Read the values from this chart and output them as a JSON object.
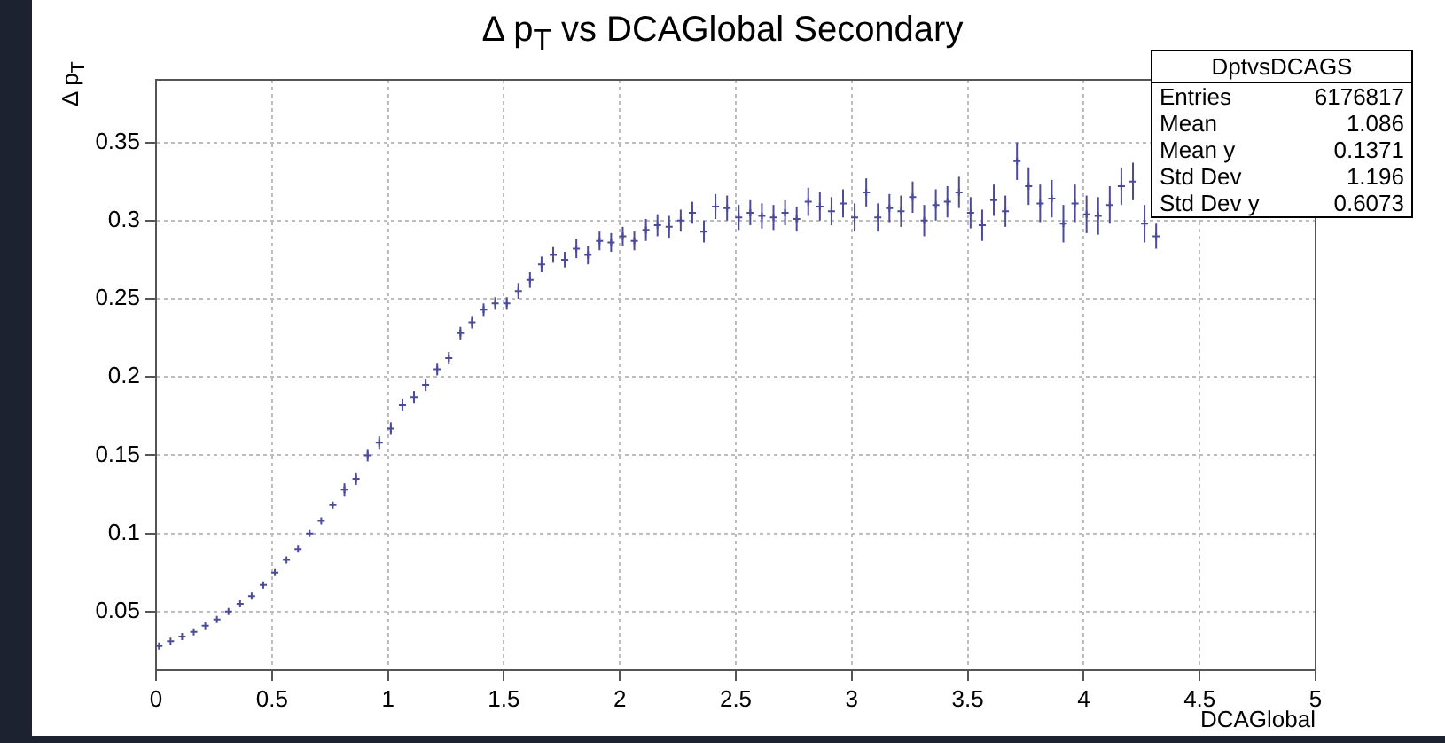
{
  "chart_data": {
    "type": "scatter",
    "title": "Δ p$_{T}$ vs DCAGlobal Secondary",
    "xlabel": "DCAGlobal",
    "ylabel": "Δ p$_{T}$",
    "annotations": [
      "DptvsDCAGS",
      "Entries",
      "6176817",
      "Mean",
      "1.086",
      "Mean y",
      "0.1371",
      "Std Dev",
      "1.196",
      "Std Dev y",
      "0.6073"
    ],
    "xlim": [
      0,
      5
    ],
    "xticks": [
      0,
      0.5,
      1,
      1.5,
      2,
      2.5,
      3,
      3.5,
      4,
      4.5,
      5
    ],
    "ylim": [
      0.0125,
      0.39
    ],
    "yticks": [
      0.05,
      0.1,
      0.15,
      0.2,
      0.25,
      0.3,
      0.35
    ],
    "grid": true,
    "legend": false,
    "marker": "cross",
    "series": [
      {
        "color": "#4b4b9a",
        "x": [
          0.0125,
          0.0625,
          0.1125,
          0.1625,
          0.2125,
          0.2625,
          0.3125,
          0.3625,
          0.4125,
          0.4625,
          0.5125,
          0.5625,
          0.6125,
          0.6625,
          0.7125,
          0.7625,
          0.8125,
          0.8625,
          0.9125,
          0.9625,
          1.0125,
          1.0625,
          1.1125,
          1.1625,
          1.2125,
          1.2625,
          1.3125,
          1.3625,
          1.4125,
          1.4625,
          1.5125,
          1.5625,
          1.6125,
          1.6625,
          1.7125,
          1.7625,
          1.8125,
          1.8625,
          1.9125,
          1.9625,
          2.0125,
          2.0625,
          2.1125,
          2.1625,
          2.2125,
          2.2625,
          2.3125,
          2.3625,
          2.4125,
          2.4625,
          2.5125,
          2.5625,
          2.6125,
          2.6625,
          2.7125,
          2.7625,
          2.8125,
          2.8625,
          2.9125,
          2.9625,
          3.0125,
          3.0625,
          3.1125,
          3.1625,
          3.2125,
          3.2625,
          3.3125,
          3.3625,
          3.4125,
          3.4625,
          3.5125,
          3.5625,
          3.6125,
          3.6625,
          3.7125,
          3.7625,
          3.8125,
          3.8625,
          3.9125,
          3.9625,
          4.0125,
          4.0625,
          4.1125,
          4.1625,
          4.2125,
          4.2625,
          4.3125
        ],
        "values": [
          0.028,
          0.031,
          0.034,
          0.037,
          0.041,
          0.045,
          0.05,
          0.055,
          0.06,
          0.067,
          0.075,
          0.083,
          0.09,
          0.1,
          0.108,
          0.118,
          0.128,
          0.135,
          0.15,
          0.158,
          0.167,
          0.182,
          0.187,
          0.195,
          0.205,
          0.212,
          0.228,
          0.235,
          0.243,
          0.247,
          0.247,
          0.255,
          0.262,
          0.272,
          0.278,
          0.275,
          0.282,
          0.278,
          0.287,
          0.286,
          0.29,
          0.287,
          0.294,
          0.297,
          0.296,
          0.3,
          0.305,
          0.293,
          0.309,
          0.308,
          0.302,
          0.305,
          0.303,
          0.302,
          0.305,
          0.301,
          0.312,
          0.309,
          0.306,
          0.311,
          0.302,
          0.318,
          0.302,
          0.308,
          0.306,
          0.315,
          0.3,
          0.31,
          0.312,
          0.318,
          0.305,
          0.297,
          0.313,
          0.306,
          0.338,
          0.322,
          0.311,
          0.314,
          0.298,
          0.311,
          0.304,
          0.303,
          0.31,
          0.322,
          0.325,
          0.298,
          0.29
        ],
        "errors": [
          null,
          null,
          null,
          null,
          null,
          null,
          null,
          null,
          null,
          null,
          null,
          null,
          null,
          null,
          null,
          null,
          0.004,
          0.004,
          0.004,
          0.004,
          0.004,
          0.004,
          0.004,
          0.004,
          0.004,
          0.004,
          0.004,
          0.004,
          0.004,
          0.004,
          0.004,
          0.005,
          0.005,
          0.005,
          0.005,
          0.005,
          0.006,
          0.006,
          0.006,
          0.006,
          0.006,
          0.006,
          0.007,
          0.007,
          0.007,
          0.007,
          0.007,
          0.007,
          0.008,
          0.008,
          0.008,
          0.008,
          0.008,
          0.008,
          0.008,
          0.008,
          0.009,
          0.009,
          0.009,
          0.009,
          0.009,
          0.009,
          0.009,
          0.009,
          0.01,
          0.01,
          0.01,
          0.01,
          0.01,
          0.01,
          0.01,
          0.01,
          0.01,
          0.01,
          0.012,
          0.012,
          0.012,
          0.012,
          0.012,
          0.012,
          0.012,
          0.012,
          0.012,
          0.012,
          0.012,
          0.012,
          0.008
        ]
      }
    ]
  }
}
